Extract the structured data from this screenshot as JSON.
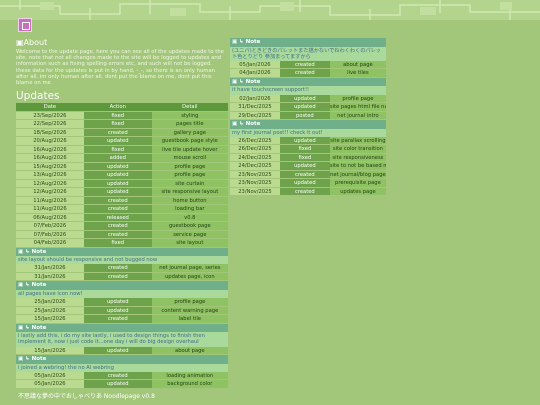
{
  "header": {
    "footer": "不思議な夢の中でおしゃべりあ Noodlepage v0.8"
  },
  "about": {
    "title": "About",
    "text": "Welcome to the update page, here you can see all of the updates made to the site. note that not all changes made to the site will be logged to updates and information such as fixing spelling errors etc, and such will not be logged. these data for the updates is put in by hand, -_-, so there is an only human after all, im only human after all, dont put the blame on me, dont put this blame on me"
  },
  "updates": {
    "title": "Updates",
    "columns": [
      "Date",
      "Action",
      "Detail"
    ],
    "left": [
      {
        "rows": [
          [
            "23/Sep/2026",
            "fixed",
            "styling"
          ],
          [
            "22/Sep/2026",
            "fixed",
            "pages title"
          ],
          [
            "18/Sep/2026",
            "created",
            "gallery page"
          ],
          [
            "20/Aug/2026",
            "updated",
            "guestbook page style"
          ],
          [
            "16/Aug/2026",
            "fixed",
            "live tile update hover"
          ],
          [
            "16/Aug/2026",
            "added",
            "mouse scroll"
          ],
          [
            "15/Aug/2026",
            "updated",
            "profile page"
          ],
          [
            "13/Aug/2026",
            "updated",
            "profile page"
          ],
          [
            "12/Aug/2026",
            "updated",
            "site curtain"
          ],
          [
            "12/Aug/2026",
            "updated",
            "site responsive layout"
          ],
          [
            "11/Aug/2026",
            "created",
            "home button"
          ],
          [
            "11/Aug/2026",
            "created",
            "loading bar"
          ],
          [
            "06/Aug/2026",
            "released",
            "v0.8"
          ],
          [
            "07/Feb/2026",
            "created",
            "guestbook page"
          ],
          [
            "07/Feb/2026",
            "created",
            "service page"
          ],
          [
            "04/Feb/2026",
            "fixed",
            "site layout"
          ]
        ]
      },
      {
        "label": "Note",
        "note": "site layout should be responsive and not bugged now"
      },
      {
        "rows": [
          [
            "31/Jan/2026",
            "created",
            "net journal page, series"
          ],
          [
            "31/Jan/2026",
            "created",
            "updates page, icon"
          ]
        ]
      },
      {
        "label": "Note",
        "note": "all pages have icon now!"
      },
      {
        "rows": [
          [
            "25/Jan/2026",
            "updated",
            "profile page"
          ],
          [
            "25/Jan/2026",
            "updated",
            "content warning page"
          ],
          [
            "15/Jan/2026",
            "created",
            "label tile"
          ]
        ]
      },
      {
        "label": "Note",
        "note": "i lastly add this, i do my site lastly, i used to design things to finish then implement it, now i just code it...one day i will do big design overhaul"
      },
      {
        "rows": [
          [
            "15/Jan/2026",
            "updated",
            "about page"
          ]
        ]
      },
      {
        "label": "Note",
        "note": "i joined a webring! the no AI webring"
      },
      {
        "rows": [
          [
            "05/Jan/2026",
            "created",
            "loading animation"
          ],
          [
            "05/Jan/2026",
            "updated",
            "background color"
          ]
        ]
      }
    ],
    "right": [
      {
        "label": "Note",
        "note": "(ユニバ)ときどきのパレットまた描かないでねわくわくのパレット色とりどり 参加まってますから"
      },
      {
        "rows": [
          [
            "05/Jan/2026",
            "created",
            "about page"
          ],
          [
            "04/Jan/2026",
            "created",
            "live tiles"
          ]
        ]
      },
      {
        "label": "Note",
        "note": "it have touchscreen support!!"
      },
      {
        "rows": [
          [
            "02/Jan/2026",
            "updated",
            "profile page"
          ],
          [
            "31/Dec/2025",
            "updated",
            "site pages html file name fi"
          ],
          [
            "29/Dec/2025",
            "posted",
            "net journal intro"
          ]
        ]
      },
      {
        "label": "Note",
        "note": "my first journal post!! check it out!"
      },
      {
        "rows": [
          [
            "26/Dec/2025",
            "updated",
            "site parallax scrolling"
          ],
          [
            "26/Dec/2025",
            "fixed",
            "site color transition"
          ],
          [
            "24/Dec/2025",
            "fixed",
            "site responsiveness"
          ],
          [
            "24/Dec/2025",
            "updated",
            "site to not be based mainly"
          ],
          [
            "23/Nov/2025",
            "created",
            "net journal/blog page"
          ],
          [
            "23/Nov/2025",
            "updated",
            "prerequisite page"
          ],
          [
            "23/Nov/2025",
            "created",
            "updates page"
          ]
        ]
      }
    ]
  }
}
